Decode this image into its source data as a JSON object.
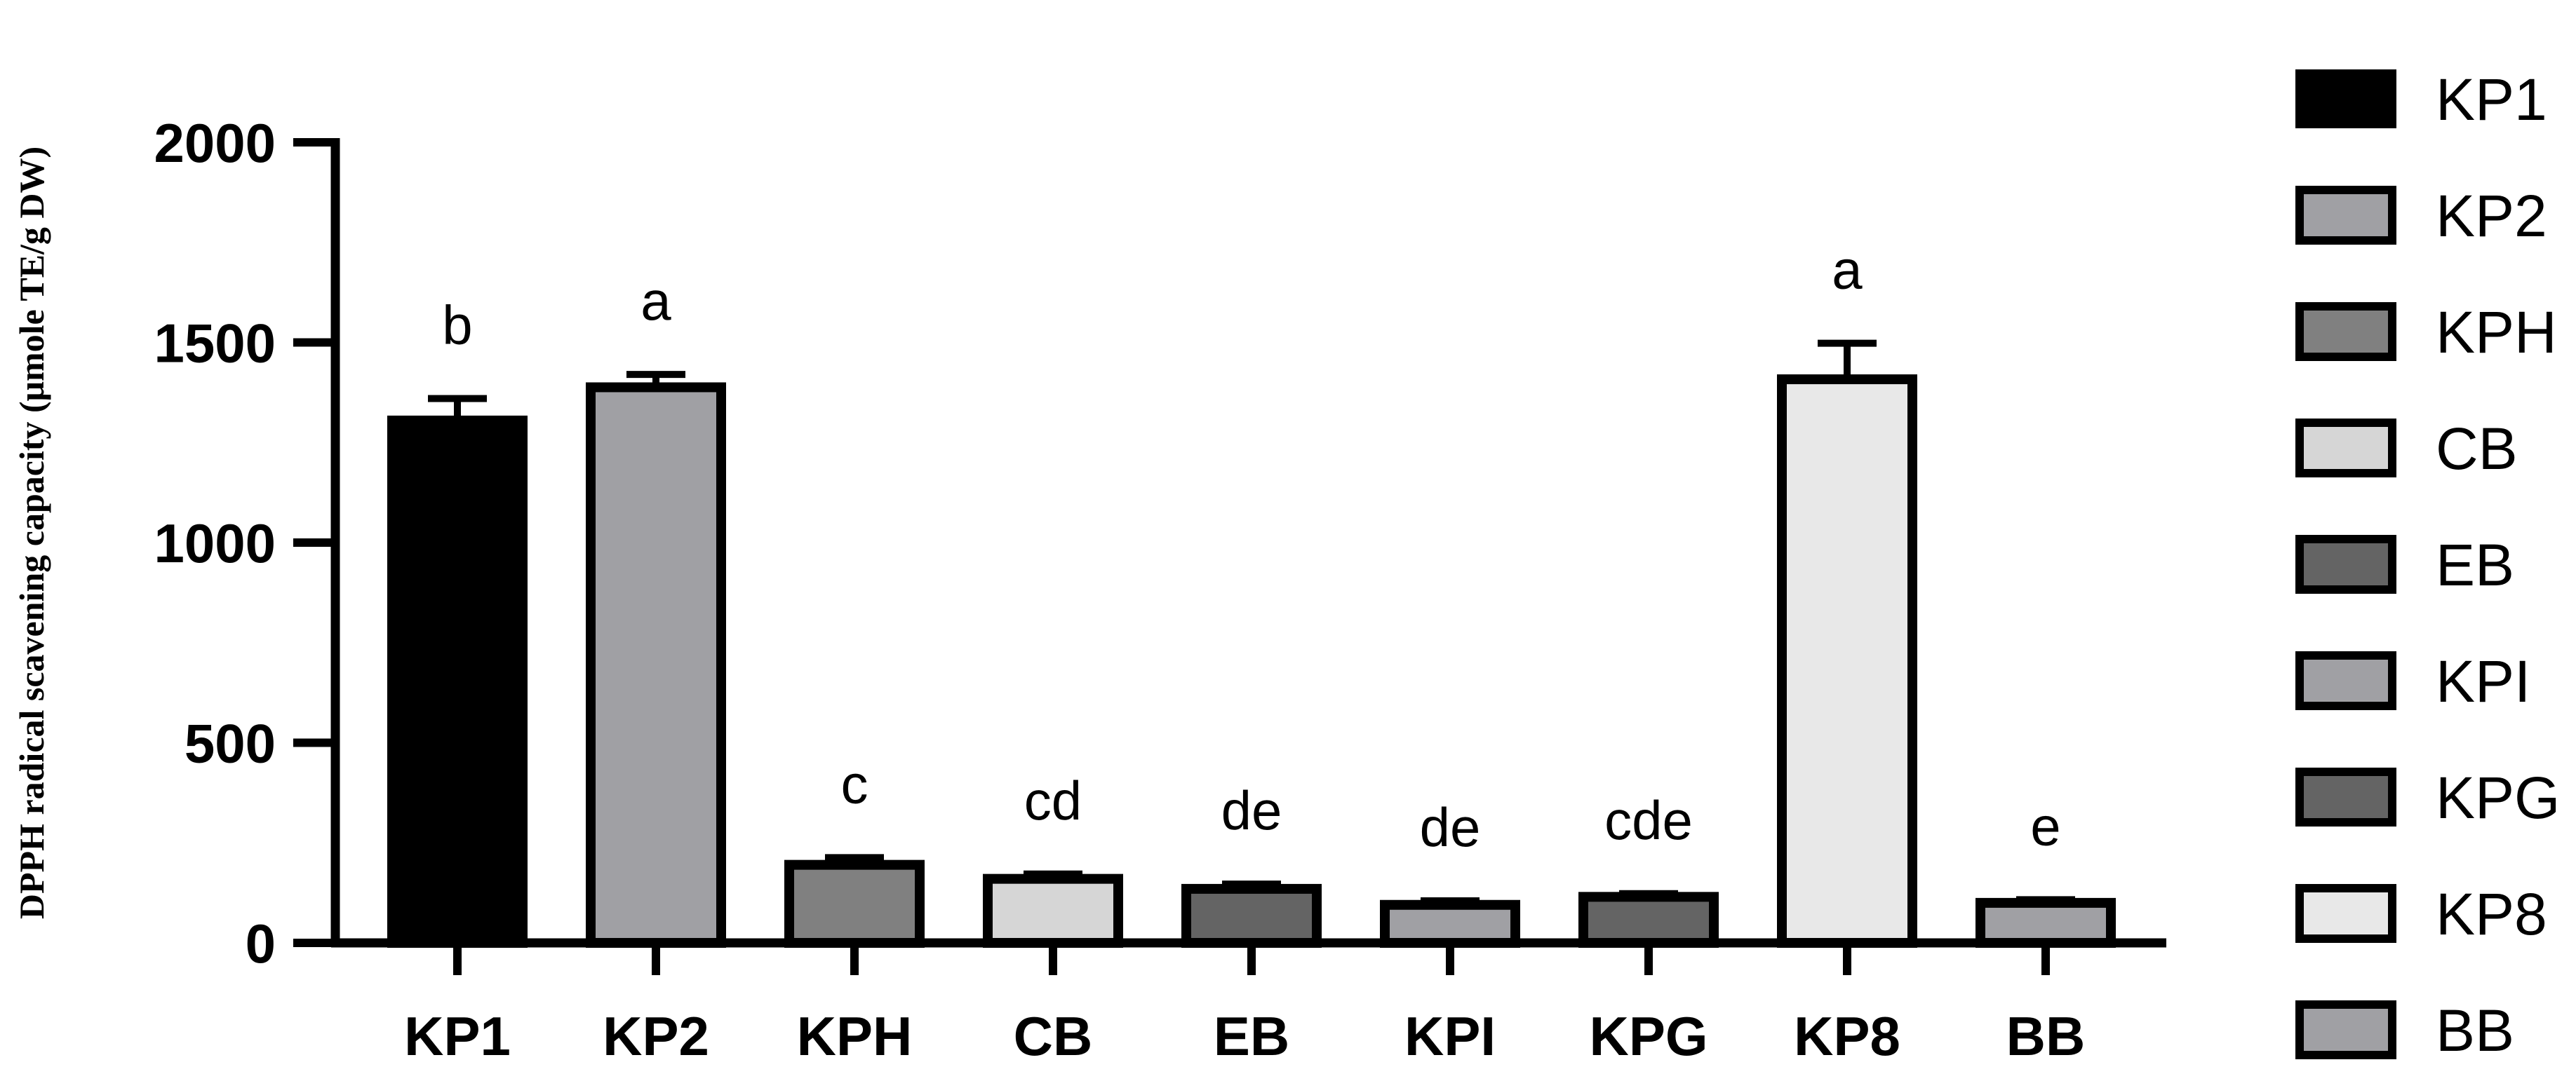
{
  "chart_data": {
    "type": "bar",
    "title": "",
    "xlabel": "",
    "ylabel": "DPPH radical scavening capacity  (μmole TE/g DW)",
    "ylim": [
      0,
      2000
    ],
    "yticks": [
      0,
      500,
      1000,
      1500,
      2000
    ],
    "categories": [
      "KP1",
      "KP2",
      "KPH",
      "CB",
      "EB",
      "KPI",
      "KPG",
      "KP8",
      "BB"
    ],
    "values": [
      1305,
      1388,
      195,
      160,
      135,
      95,
      115,
      1408,
      100
    ],
    "errors": [
      55,
      32,
      18,
      12,
      12,
      10,
      8,
      90,
      8
    ],
    "significance_letters": [
      "b",
      "a",
      "c",
      "cd",
      "de",
      "de",
      "cde",
      "a",
      "e"
    ],
    "colors": [
      "#000000",
      "#a0a0a4",
      "#808080",
      "#d6d6d6",
      "#646464",
      "#a0a0a4",
      "#646464",
      "#e8e8e8",
      "#a0a0a4"
    ],
    "legend": {
      "placement": "right",
      "entries": [
        "KP1",
        "KP2",
        "KPH",
        "CB",
        "EB",
        "KPI",
        "KPG",
        "KP8",
        "BB"
      ]
    },
    "grid": false
  }
}
